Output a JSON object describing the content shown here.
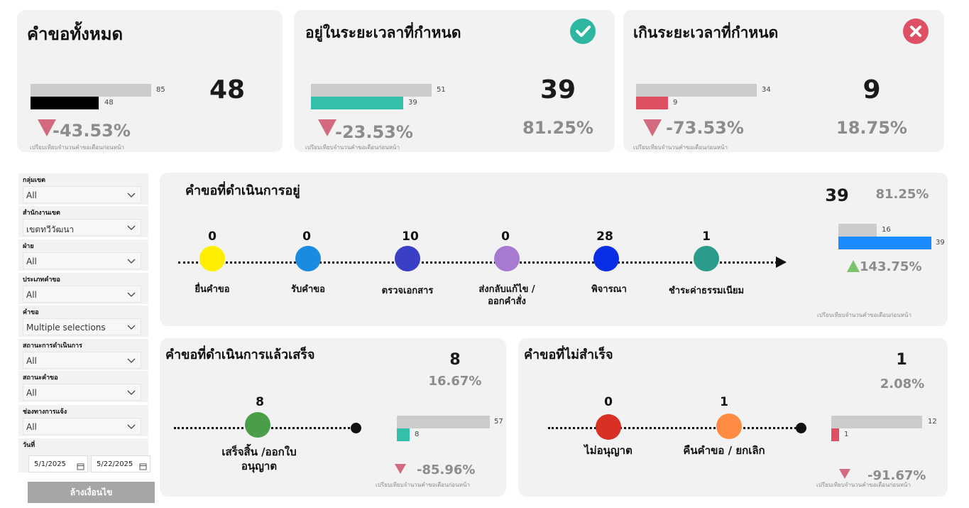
{
  "kpi_total": {
    "title": "คำขอทั้งหมด",
    "value": "48",
    "bar_prev": "85",
    "bar_curr": "48",
    "delta": "-43.53%",
    "note": "เปรียบเทียบจำนวนคำขอเดือนก่อนหน้า",
    "fill_prev": 1.0,
    "fill_curr": 0.565,
    "color_curr": "#000000"
  },
  "kpi_ontime": {
    "title": "อยู่ในระยะเวลาที่กำหนด",
    "icon": "check-icon",
    "icon_color": "#2eb7a0",
    "value": "39",
    "percent": "81.25%",
    "bar_prev": "51",
    "bar_curr": "39",
    "delta": "-23.53%",
    "note": "เปรียบเทียบจำนวนคำขอเดือนก่อนหน้า",
    "fill_prev": 1.0,
    "fill_curr": 0.765,
    "color_curr": "#34c0a8"
  },
  "kpi_overdue": {
    "title": "เกินระยะเวลาที่กำหนด",
    "icon": "close-icon",
    "icon_color": "#e05065",
    "value": "9",
    "percent": "18.75%",
    "bar_prev": "34",
    "bar_curr": "9",
    "delta": "-73.53%",
    "note": "เปรียบเทียบจำนวนคำขอเดือนก่อนหน้า",
    "fill_prev": 1.0,
    "fill_curr": 0.265,
    "color_curr": "#e05065"
  },
  "filters": [
    {
      "label": "กลุ่มเขต",
      "value": "All"
    },
    {
      "label": "สำนักงานเขต",
      "value": "เขตทวีวัฒนา"
    },
    {
      "label": "ฝ่าย",
      "value": "All"
    },
    {
      "label": "ประเภทคำขอ",
      "value": "All"
    },
    {
      "label": "คำขอ",
      "value": "Multiple selections"
    },
    {
      "label": "สถานะการดำเนินการ",
      "value": "All"
    },
    {
      "label": "สถานะคำขอ",
      "value": "All"
    },
    {
      "label": "ช่องทางการแจ้ง",
      "value": "All"
    }
  ],
  "date_filter": {
    "label": "วันที่",
    "start": "5/1/2025",
    "end": "5/22/2025"
  },
  "reset_label": "ล้างเงื่อนไข",
  "in_progress": {
    "title": "คำขอที่ดำเนินการอยู่",
    "value": "39",
    "percent": "81.25%",
    "bar_prev": "16",
    "bar_curr": "39",
    "fill_prev": 0.41,
    "fill_curr": 1.0,
    "delta": "143.75%",
    "note": "เปรียบเทียบจำนวนคำขอเดือนก่อนหน้า",
    "steps": [
      {
        "value": "0",
        "label": "ยื่นคำขอ",
        "color": "#ffee00"
      },
      {
        "value": "0",
        "label": "รับคำขอ",
        "color": "#1a8be0"
      },
      {
        "value": "10",
        "label": "ตรวจเอกสาร",
        "color": "#3b3fc7"
      },
      {
        "value": "0",
        "label": "ส่งกลับแก้ไข /ออกคำสั่ง",
        "color": "#a67ad2"
      },
      {
        "value": "28",
        "label": "พิจารณา",
        "color": "#0a2ee6"
      },
      {
        "value": "1",
        "label": "ชำระค่าธรรมเนียม",
        "color": "#2a9d8a"
      }
    ]
  },
  "completed": {
    "title": "คำขอที่ดำเนินการแล้วเสร็จ",
    "value": "8",
    "percent": "16.67%",
    "step_value": "8",
    "step_label": "เสร็จสิ้น /ออกใบอนุญาต",
    "step_color": "#4a9e4a",
    "bar_prev": "57",
    "bar_curr": "8",
    "fill_prev": 1.0,
    "fill_curr": 0.14,
    "delta": "-85.96%",
    "note": "เปรียบเทียบจำนวนคำขอเดือนก่อนหน้า"
  },
  "failed": {
    "title": "คำขอที่ไม่สำเร็จ",
    "value": "1",
    "percent": "2.08%",
    "steps": [
      {
        "value": "0",
        "label": "ไม่อนุญาต",
        "color": "#d93025"
      },
      {
        "value": "1",
        "label": "คืนคำขอ / ยกเลิก",
        "color": "#ff8c42"
      }
    ],
    "bar_prev": "12",
    "bar_curr": "1",
    "fill_prev": 1.0,
    "fill_curr": 0.083,
    "delta": "-91.67%",
    "note": "เปรียบเทียบจำนวนคำขอเดือนก่อนหน้า"
  }
}
